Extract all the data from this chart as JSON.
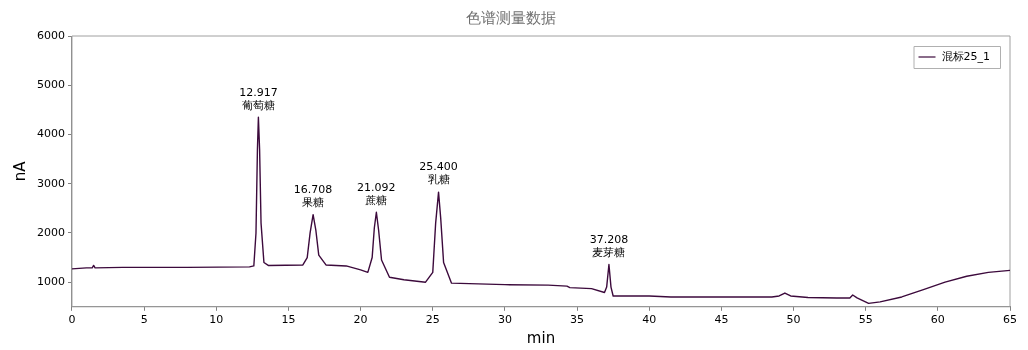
{
  "chart_data": {
    "type": "line",
    "title": "色谱测量数据",
    "xlabel": "min",
    "ylabel": "nA",
    "xlim": [
      0,
      65
    ],
    "xticks": [
      0,
      5,
      10,
      15,
      20,
      25,
      30,
      35,
      40,
      45,
      50,
      55,
      60,
      65
    ],
    "ylim": [
      500,
      6000
    ],
    "yticks": [
      1000,
      2000,
      3000,
      4000,
      5000,
      6000
    ],
    "grid": false,
    "legend": "top right",
    "marker": "none",
    "line_style": "solid",
    "series": [
      {
        "name": "混标25_1",
        "color": "#3c0a3c",
        "x": [
          0,
          1.0,
          1.4,
          1.5,
          1.6,
          3.5,
          8,
          12.3,
          12.6,
          12.75,
          12.85,
          12.917,
          13.0,
          13.1,
          13.3,
          13.6,
          16.0,
          16.3,
          16.5,
          16.708,
          16.9,
          17.1,
          17.6,
          19,
          20,
          20.5,
          20.8,
          20.95,
          21.092,
          21.25,
          21.45,
          22,
          23,
          24.5,
          25.0,
          25.2,
          25.4,
          25.55,
          25.75,
          26.3,
          30,
          33,
          34.3,
          34.5,
          36,
          36.9,
          37.05,
          37.208,
          37.35,
          37.5,
          40,
          41.5,
          48.5,
          49.0,
          49.4,
          49.8,
          51,
          53,
          53.9,
          54.1,
          54.4,
          55.2,
          56,
          57.5,
          59,
          60.5,
          62,
          63.5,
          65
        ],
        "values": [
          1270,
          1290,
          1290,
          1340,
          1290,
          1300,
          1300,
          1310,
          1330,
          2000,
          3700,
          4350,
          3700,
          2200,
          1400,
          1340,
          1350,
          1500,
          2000,
          2370,
          2050,
          1550,
          1350,
          1330,
          1250,
          1200,
          1500,
          2100,
          2420,
          2050,
          1450,
          1100,
          1050,
          1000,
          1200,
          2200,
          2830,
          2300,
          1400,
          980,
          950,
          940,
          920,
          890,
          870,
          790,
          900,
          1360,
          900,
          720,
          720,
          700,
          700,
          720,
          780,
          720,
          690,
          680,
          680,
          740,
          680,
          570,
          600,
          700,
          850,
          1000,
          1120,
          1200,
          1240
        ]
      }
    ],
    "annotations": [
      {
        "text": "12.917\n葡萄糖",
        "x": 12.917,
        "y": 4350
      },
      {
        "text": "16.708\n果糖",
        "x": 16.708,
        "y": 2370
      },
      {
        "text": "21.092\n蔗糖",
        "x": 21.092,
        "y": 2420
      },
      {
        "text": "25.400\n乳糖",
        "x": 25.4,
        "y": 2830
      },
      {
        "text": "37.208\n麦芽糖",
        "x": 37.208,
        "y": 1360
      }
    ]
  }
}
